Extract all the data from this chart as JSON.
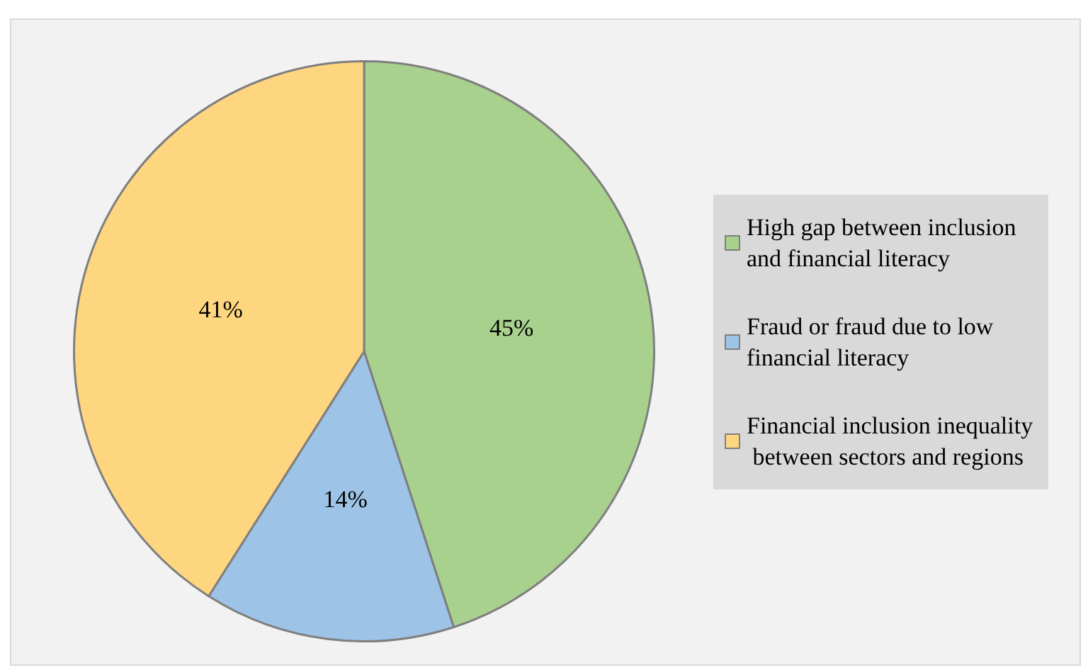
{
  "chart_data": {
    "type": "pie",
    "categories": [
      "High gap between inclusion and financial literacy",
      "Fraud or fraud due to low financial literacy",
      "Financial inclusion inequality between sectors and regions"
    ],
    "values": [
      45,
      14,
      41
    ],
    "colors": [
      "#a9d18e",
      "#9dc3e6",
      "#ffd680"
    ],
    "value_labels": [
      "45%",
      "14%",
      "41%"
    ],
    "legend": "right"
  }
}
